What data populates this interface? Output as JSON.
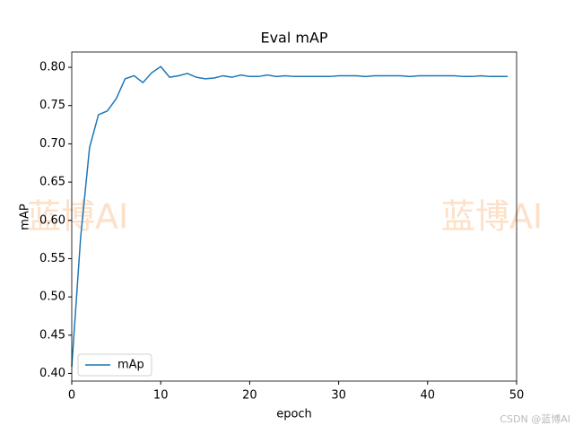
{
  "chart_data": {
    "type": "line",
    "title": "Eval mAP",
    "xlabel": "epoch",
    "ylabel": "mAP",
    "x": [
      0,
      1,
      2,
      3,
      4,
      5,
      6,
      7,
      8,
      9,
      10,
      11,
      12,
      13,
      14,
      15,
      16,
      17,
      18,
      19,
      20,
      21,
      22,
      23,
      24,
      25,
      26,
      27,
      28,
      29,
      30,
      31,
      32,
      33,
      34,
      35,
      36,
      37,
      38,
      39,
      40,
      41,
      42,
      43,
      44,
      45,
      46,
      47,
      48,
      49
    ],
    "series": [
      {
        "name": "mAp",
        "color": "#1f77b4",
        "values": [
          0.409,
          0.578,
          0.695,
          0.738,
          0.743,
          0.759,
          0.785,
          0.789,
          0.78,
          0.793,
          0.801,
          0.787,
          0.789,
          0.792,
          0.787,
          0.785,
          0.786,
          0.789,
          0.787,
          0.79,
          0.788,
          0.788,
          0.79,
          0.788,
          0.789,
          0.788,
          0.788,
          0.788,
          0.788,
          0.788,
          0.789,
          0.789,
          0.789,
          0.788,
          0.789,
          0.789,
          0.789,
          0.789,
          0.788,
          0.789,
          0.789,
          0.789,
          0.789,
          0.789,
          0.788,
          0.788,
          0.789,
          0.788,
          0.788,
          0.788
        ]
      }
    ],
    "xlim": [
      0,
      50
    ],
    "xticks": [
      0,
      10,
      20,
      30,
      40,
      50
    ],
    "ylim": [
      0.39,
      0.82
    ],
    "yticks": [
      {
        "value": 0.4,
        "label": "0.40"
      },
      0.45,
      {
        "value": 0.5,
        "label": "0.50"
      },
      0.55,
      {
        "value": 0.6,
        "label": "0.60"
      },
      0.65,
      {
        "value": 0.7,
        "label": "0.70"
      },
      0.75,
      {
        "value": 0.8,
        "label": "0.80"
      }
    ],
    "legend": "lower left",
    "grid": false
  },
  "watermarks": [
    "蓝博AI",
    "蓝博AI"
  ],
  "credit": "CSDN @蓝博AI"
}
